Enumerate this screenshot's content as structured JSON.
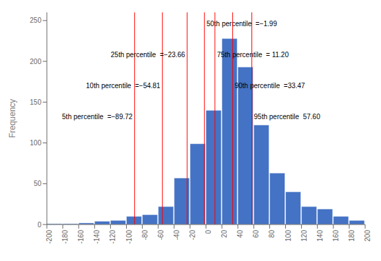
{
  "chart_data": {
    "type": "bar",
    "x": [
      -190,
      -170,
      -150,
      -130,
      -110,
      -90,
      -70,
      -50,
      -30,
      -10,
      10,
      30,
      50,
      70,
      90,
      110,
      130,
      150,
      170,
      190
    ],
    "values": [
      1,
      1,
      2,
      4,
      5,
      10,
      12,
      22,
      57,
      99,
      140,
      228,
      193,
      122,
      63,
      40,
      22,
      19,
      10,
      5
    ],
    "color": "#4472C4",
    "ylabel": "Frequency",
    "xlim": [
      -200,
      200
    ],
    "ylim": [
      0,
      260
    ],
    "xticks": [
      -200,
      -180,
      -160,
      -140,
      -120,
      -100,
      -80,
      -60,
      -40,
      -20,
      0,
      20,
      40,
      60,
      80,
      100,
      120,
      140,
      160,
      180,
      200
    ],
    "yticks": [
      0,
      50,
      100,
      150,
      200,
      250
    ],
    "grid": false,
    "lines": [
      {
        "x": -89.72,
        "label": "5th percentile  =−89.72",
        "color": "#FF0000"
      },
      {
        "x": -54.81,
        "label": "10th percentile  =−54.81",
        "color": "#FF0000"
      },
      {
        "x": -23.66,
        "label": "25th percentile  =−23.66",
        "color": "#FF0000"
      },
      {
        "x": -1.99,
        "label": "50th percentile  =−1.99",
        "color": "#FF0000"
      },
      {
        "x": 11.2,
        "label": "75th percentile  = 11.20",
        "color": "#FF0000"
      },
      {
        "x": 33.47,
        "label": "90th percentile  =33.47",
        "color": "#FF0000"
      },
      {
        "x": 57.6,
        "label": "95th percentile  57.60",
        "color": "#FF0000"
      }
    ]
  }
}
